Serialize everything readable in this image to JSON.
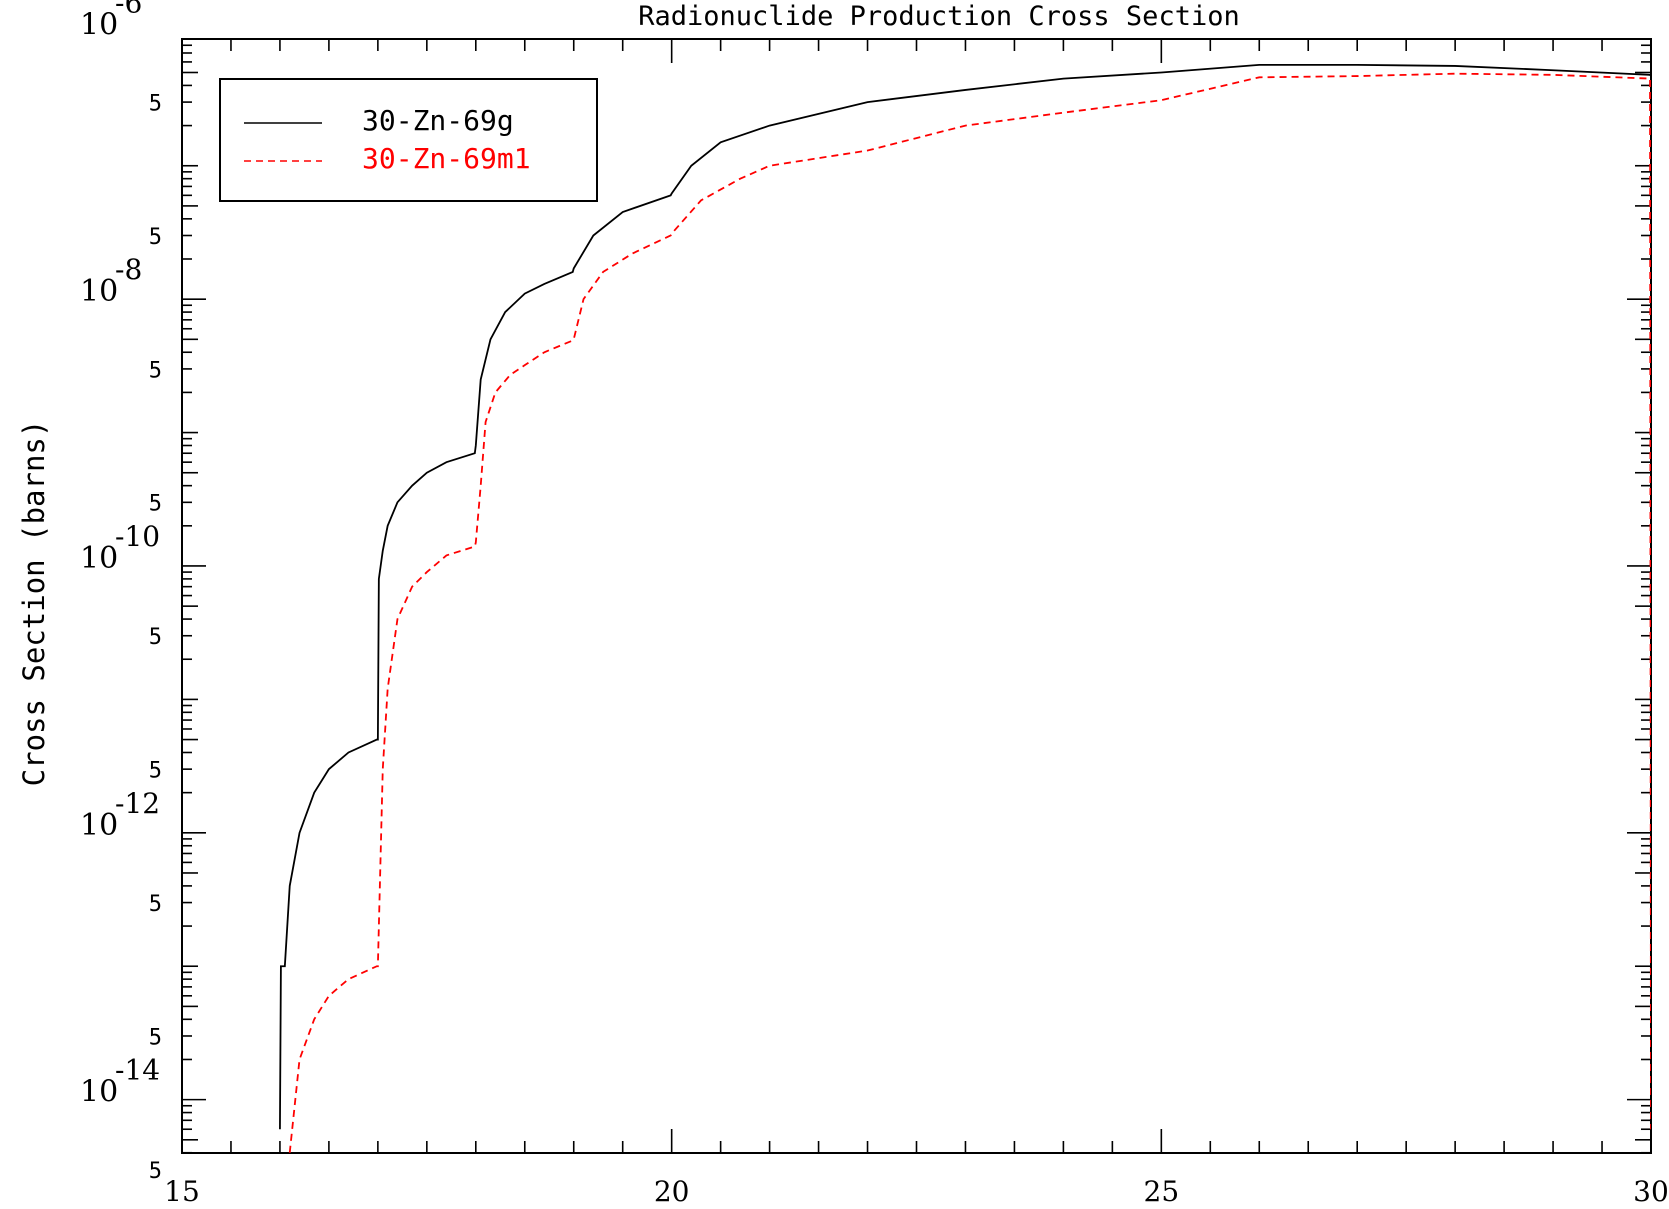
{
  "chart_data": {
    "type": "line",
    "title": "Radionuclide Production Cross Section",
    "xlabel": "",
    "ylabel": "Cross Section (barns)",
    "xlim": [
      15,
      30
    ],
    "ylog": true,
    "ylim_log10": [
      -14.4,
      -6.05
    ],
    "x_ticks": [
      "15",
      "20",
      "25",
      "30"
    ],
    "y_major_ticks": [
      {
        "base": "10",
        "exp": "-6",
        "log10": -6
      },
      {
        "base": "10",
        "exp": "-8",
        "log10": -8
      },
      {
        "base": "10",
        "exp": "-10",
        "log10": -10
      },
      {
        "base": "10",
        "exp": "-12",
        "log10": -12
      },
      {
        "base": "10",
        "exp": "-14",
        "log10": -14
      }
    ],
    "y_minor_label": "5",
    "legend_position": "top-left",
    "grid": false,
    "series": [
      {
        "name": "30-Zn-69g",
        "color": "#000000",
        "dash": "solid",
        "x": [
          16.0,
          16.01,
          16.05,
          16.1,
          16.2,
          16.35,
          16.5,
          16.7,
          16.99,
          17.0,
          17.01,
          17.05,
          17.1,
          17.2,
          17.35,
          17.5,
          17.7,
          17.99,
          18.0,
          18.05,
          18.15,
          18.3,
          18.5,
          18.7,
          18.99,
          19.0,
          19.2,
          19.5,
          19.99,
          20.0,
          20.2,
          20.5,
          21.0,
          22.0,
          23.0,
          24.0,
          25.0,
          26.0,
          27.0,
          28.0,
          29.0,
          29.99,
          30.0
        ],
        "y": [
          6e-15,
          1e-13,
          1e-13,
          4e-13,
          1e-12,
          2e-12,
          3e-12,
          4e-12,
          5e-12,
          5e-12,
          8e-11,
          1.3e-10,
          2e-10,
          3e-10,
          4e-10,
          5e-10,
          6e-10,
          7e-10,
          8e-10,
          2.5e-09,
          5e-09,
          8e-09,
          1.1e-08,
          1.3e-08,
          1.6e-08,
          1.7e-08,
          3e-08,
          4.5e-08,
          6e-08,
          6.2e-08,
          1e-07,
          1.5e-07,
          2e-07,
          3e-07,
          3.7e-07,
          4.5e-07,
          5e-07,
          5.7e-07,
          5.7e-07,
          5.6e-07,
          5.2e-07,
          4.8e-07,
          4.7e-07
        ]
      },
      {
        "name": "30-Zn-69m1",
        "color": "#ff0000",
        "dash": "dashed",
        "x": [
          16.1,
          16.2,
          16.35,
          16.5,
          16.7,
          16.99,
          17.0,
          17.05,
          17.1,
          17.2,
          17.35,
          17.5,
          17.7,
          17.99,
          18.0,
          18.05,
          18.1,
          18.2,
          18.35,
          18.5,
          18.7,
          18.99,
          19.0,
          19.1,
          19.3,
          19.6,
          19.99,
          20.0,
          20.3,
          20.7,
          21.0,
          22.0,
          23.0,
          24.0,
          25.0,
          26.0,
          27.0,
          28.0,
          29.0,
          29.99,
          30.0
        ],
        "y": [
          4e-15,
          2e-14,
          4e-14,
          6e-14,
          8e-14,
          1e-13,
          1e-13,
          3e-12,
          1.2e-11,
          4e-11,
          7e-11,
          9e-11,
          1.2e-10,
          1.4e-10,
          1.5e-10,
          4e-10,
          1.2e-09,
          2e-09,
          2.7e-09,
          3.2e-09,
          4e-09,
          4.9e-09,
          5e-09,
          1e-08,
          1.6e-08,
          2.2e-08,
          3e-08,
          3.1e-08,
          5.5e-08,
          8e-08,
          1e-07,
          1.3e-07,
          2e-07,
          2.5e-07,
          3.1e-07,
          4.6e-07,
          4.7e-07,
          4.9e-07,
          4.8e-07,
          4.5e-07,
          6e-15
        ]
      }
    ]
  }
}
